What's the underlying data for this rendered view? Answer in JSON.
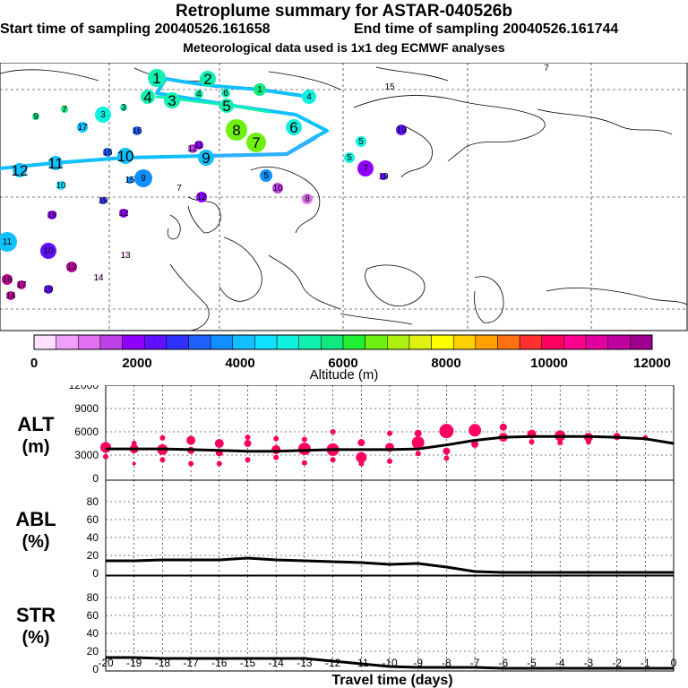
{
  "header": {
    "title": "Retroplume summary for ASTAR-040526b",
    "start": "Start time of sampling 20040526.161658",
    "end": "End time of sampling 20040526.161744",
    "met": "Meteorological data used is 1x1 deg ECMWF analyses"
  },
  "map": {
    "plume_labels": [
      {
        "text": "1"
      },
      {
        "text": "2"
      },
      {
        "text": "3"
      },
      {
        "text": "4"
      },
      {
        "text": "5"
      },
      {
        "text": "6"
      },
      {
        "text": "7"
      },
      {
        "text": "8"
      },
      {
        "text": "9"
      },
      {
        "text": "10"
      },
      {
        "text": "11"
      },
      {
        "text": "12"
      }
    ],
    "cluster_labels": [
      "1",
      "2",
      "3",
      "4",
      "5",
      "6",
      "7",
      "8",
      "9",
      "10",
      "11",
      "12",
      "13",
      "14",
      "15",
      "16",
      "17",
      "18",
      "19",
      "20"
    ]
  },
  "colorbar": {
    "ticks": [
      "0",
      "2000",
      "4000",
      "6000",
      "8000",
      "10000",
      "12000"
    ],
    "label": "Altitude (m)",
    "colors": [
      "#ffe0ff",
      "#f0a0f8",
      "#e070f0",
      "#c040e8",
      "#9000ff",
      "#6010ff",
      "#3030ff",
      "#2060ff",
      "#1090ff",
      "#10c0ff",
      "#10e0ff",
      "#10f0e0",
      "#10f0b0",
      "#10e880",
      "#20f030",
      "#70f010",
      "#b0f010",
      "#e0f010",
      "#ffff00",
      "#ffd000",
      "#ffa000",
      "#ff7010",
      "#ff3030",
      "#ff0060",
      "#ff0090",
      "#e000a0",
      "#c000a0",
      "#a00090"
    ]
  },
  "chart_data": [
    {
      "type": "line",
      "name": "ALT",
      "ylabel_line1": "ALT",
      "ylabel_line2": "(m)",
      "ylim": [
        0,
        12000
      ],
      "yticks": [
        "0",
        "3000",
        "6000",
        "9000",
        "12000"
      ],
      "x": [
        -20,
        -19,
        -18,
        -17,
        -16,
        -15,
        -14,
        -13,
        -12,
        -11,
        -10,
        -9,
        -8,
        -7,
        -6,
        -5,
        -4,
        -3,
        -2,
        -1,
        0
      ],
      "values": [
        3800,
        3800,
        3800,
        3700,
        3600,
        3500,
        3500,
        3600,
        3700,
        3700,
        3700,
        3800,
        4300,
        4900,
        5300,
        5400,
        5400,
        5400,
        5300,
        5100,
        4500
      ],
      "scatter": [
        {
          "x": -20,
          "y": 4000,
          "s": 6
        },
        {
          "x": -20,
          "y": 2800,
          "s": 3
        },
        {
          "x": -19,
          "y": 3800,
          "s": 5
        },
        {
          "x": -19,
          "y": 4500,
          "s": 3
        },
        {
          "x": -19,
          "y": 1900,
          "s": 2
        },
        {
          "x": -18,
          "y": 3700,
          "s": 6
        },
        {
          "x": -18,
          "y": 5200,
          "s": 3
        },
        {
          "x": -18,
          "y": 2400,
          "s": 3
        },
        {
          "x": -17,
          "y": 4900,
          "s": 5
        },
        {
          "x": -17,
          "y": 3600,
          "s": 4
        },
        {
          "x": -17,
          "y": 1900,
          "s": 3
        },
        {
          "x": -16,
          "y": 4500,
          "s": 5
        },
        {
          "x": -16,
          "y": 3300,
          "s": 4
        },
        {
          "x": -16,
          "y": 1900,
          "s": 3
        },
        {
          "x": -15,
          "y": 5300,
          "s": 3
        },
        {
          "x": -15,
          "y": 4500,
          "s": 4
        },
        {
          "x": -15,
          "y": 2400,
          "s": 3
        },
        {
          "x": -14,
          "y": 3700,
          "s": 5
        },
        {
          "x": -14,
          "y": 5100,
          "s": 3
        },
        {
          "x": -14,
          "y": 2700,
          "s": 3
        },
        {
          "x": -13,
          "y": 3800,
          "s": 7
        },
        {
          "x": -13,
          "y": 5000,
          "s": 3
        },
        {
          "x": -13,
          "y": 2000,
          "s": 3
        },
        {
          "x": -12,
          "y": 3700,
          "s": 7
        },
        {
          "x": -12,
          "y": 6000,
          "s": 3
        },
        {
          "x": -12,
          "y": 2400,
          "s": 3
        },
        {
          "x": -11,
          "y": 2700,
          "s": 6
        },
        {
          "x": -11,
          "y": 4600,
          "s": 4
        },
        {
          "x": -11,
          "y": 1900,
          "s": 3
        },
        {
          "x": -10,
          "y": 4000,
          "s": 5
        },
        {
          "x": -10,
          "y": 5800,
          "s": 3
        },
        {
          "x": -10,
          "y": 2200,
          "s": 3
        },
        {
          "x": -9,
          "y": 4600,
          "s": 7
        },
        {
          "x": -9,
          "y": 5800,
          "s": 4
        },
        {
          "x": -9,
          "y": 3200,
          "s": 3
        },
        {
          "x": -8,
          "y": 6100,
          "s": 8
        },
        {
          "x": -8,
          "y": 3500,
          "s": 4
        },
        {
          "x": -8,
          "y": 2600,
          "s": 3
        },
        {
          "x": -7,
          "y": 6200,
          "s": 7
        },
        {
          "x": -7,
          "y": 4400,
          "s": 4
        },
        {
          "x": -6,
          "y": 6600,
          "s": 4
        },
        {
          "x": -6,
          "y": 5300,
          "s": 5
        },
        {
          "x": -5,
          "y": 5700,
          "s": 5
        },
        {
          "x": -5,
          "y": 4700,
          "s": 3
        },
        {
          "x": -4,
          "y": 5500,
          "s": 6
        },
        {
          "x": -4,
          "y": 4600,
          "s": 3
        },
        {
          "x": -3,
          "y": 5300,
          "s": 5
        },
        {
          "x": -3,
          "y": 4700,
          "s": 3
        },
        {
          "x": -2,
          "y": 5400,
          "s": 4
        },
        {
          "x": -1,
          "y": 5200,
          "s": 3
        }
      ]
    },
    {
      "type": "line",
      "name": "ABL",
      "ylabel_line1": "ABL",
      "ylabel_line2": "(%)",
      "ylim": [
        0,
        100
      ],
      "yticks": [
        "0",
        "20",
        "40",
        "60",
        "80"
      ],
      "x": [
        -20,
        -19,
        -18,
        -17,
        -16,
        -15,
        -14,
        -13,
        -12,
        -11,
        -10,
        -9,
        -8,
        -7,
        -6,
        -5,
        -4,
        -3,
        -2,
        -1,
        0
      ],
      "values": [
        14,
        14,
        15,
        15,
        15,
        17,
        15,
        14,
        13,
        12,
        10,
        11,
        7,
        2,
        1,
        1,
        1,
        1,
        1,
        1,
        1
      ]
    },
    {
      "type": "line",
      "name": "STR",
      "ylabel_line1": "STR",
      "ylabel_line2": "(%)",
      "ylim": [
        0,
        100
      ],
      "yticks": [
        "0",
        "20",
        "40",
        "60",
        "80"
      ],
      "x": [
        -20,
        -19,
        -18,
        -17,
        -16,
        -15,
        -14,
        -13,
        -12,
        -11,
        -10,
        -9,
        -8,
        -7,
        -6,
        -5,
        -4,
        -3,
        -2,
        -1,
        0
      ],
      "values": [
        13,
        13,
        12,
        12,
        12,
        12,
        12,
        12,
        9,
        6,
        3,
        2,
        2,
        2,
        1,
        1,
        1,
        1,
        1,
        1,
        1
      ]
    }
  ],
  "xaxis": {
    "ticks": [
      "-20",
      "-19",
      "-18",
      "-17",
      "-16",
      "-15",
      "-14",
      "-13",
      "-12",
      "-11",
      "-10",
      "-9",
      "-8",
      "-7",
      "-6",
      "-5",
      "-4",
      "-3",
      "-2",
      "-1",
      "0"
    ],
    "label": "Travel time (days)"
  }
}
